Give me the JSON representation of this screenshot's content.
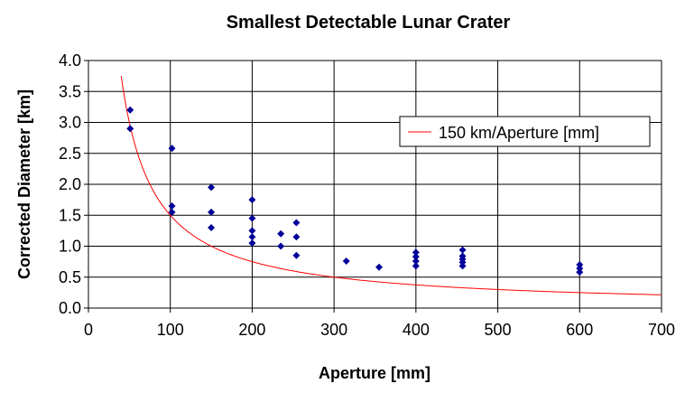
{
  "chart_data": {
    "type": "scatter",
    "title": "Smallest Detectable Lunar Crater",
    "xlabel": "Aperture [mm]",
    "ylabel": "Corrected Diameter [km]",
    "xlim": [
      0,
      700
    ],
    "ylim": [
      0,
      4.0
    ],
    "xticks": [
      "0",
      "100",
      "200",
      "300",
      "400",
      "500",
      "600",
      "700"
    ],
    "yticks": [
      "0.0",
      "0.5",
      "1.0",
      "1.5",
      "2.0",
      "2.5",
      "3.0",
      "3.5",
      "4.0"
    ],
    "grid": true,
    "legend": {
      "placement": "top-right",
      "entries": [
        "150 km/Aperture [mm]"
      ]
    },
    "curve": {
      "name": "150 km/Aperture [mm]",
      "formula_k": 150,
      "x_range": [
        40,
        700
      ],
      "color": "#ff0000"
    },
    "points": {
      "color": "#000099",
      "x": [
        51,
        51,
        102,
        102,
        102,
        150,
        150,
        150,
        200,
        200,
        200,
        200,
        200,
        235,
        235,
        254,
        254,
        254,
        315,
        355,
        400,
        400,
        400,
        400,
        457,
        457,
        457,
        457,
        457,
        600,
        600,
        600
      ],
      "y": [
        3.2,
        2.9,
        2.58,
        1.65,
        1.55,
        1.95,
        1.55,
        1.3,
        1.75,
        1.45,
        1.25,
        1.15,
        1.05,
        1.2,
        1.0,
        1.38,
        1.15,
        0.85,
        0.76,
        0.66,
        0.9,
        0.83,
        0.76,
        0.68,
        0.94,
        0.84,
        0.79,
        0.74,
        0.68,
        0.7,
        0.64,
        0.58
      ]
    }
  }
}
